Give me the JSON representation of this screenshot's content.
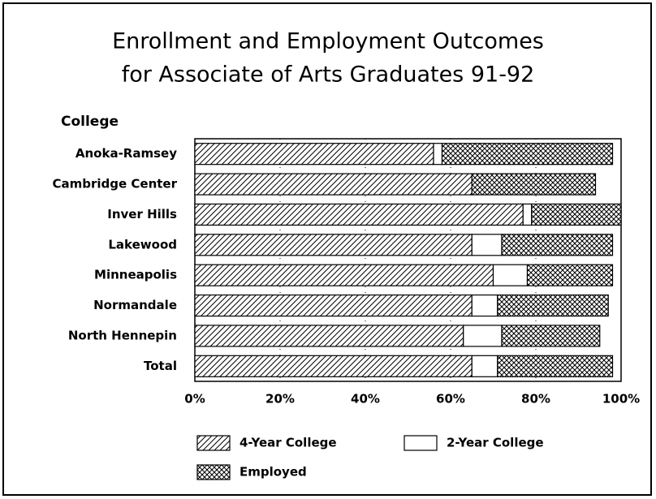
{
  "chart_data": {
    "type": "stacked_bar_horizontal",
    "title": [
      "Enrollment and Employment Outcomes",
      "for Associate of Arts Graduates 91-92"
    ],
    "y_axis_label": "College",
    "categories": [
      "Anoka-Ramsey",
      "Cambridge Center",
      "Inver Hills",
      "Lakewood",
      "Minneapolis",
      "Normandale",
      "North Hennepin",
      "Total"
    ],
    "series": [
      {
        "name": "4-Year College",
        "color": "#000000",
        "pattern": "hatch",
        "values": [
          56,
          65,
          77,
          65,
          70,
          65,
          63,
          65
        ]
      },
      {
        "name": "2-Year College",
        "color": "#000000",
        "pattern": "none",
        "values": [
          2,
          0,
          2,
          7,
          8,
          6,
          9,
          6
        ]
      },
      {
        "name": "Employed",
        "color": "#000000",
        "pattern": "crosshatch",
        "values": [
          40,
          29,
          21,
          26,
          20,
          26,
          23,
          27
        ]
      }
    ],
    "xlim": [
      0,
      100
    ],
    "xticks": [
      {
        "value": 0,
        "label": "0%"
      },
      {
        "value": 20,
        "label": "20%"
      },
      {
        "value": 40,
        "label": "40%"
      },
      {
        "value": 60,
        "label": "60%"
      },
      {
        "value": 80,
        "label": "80%"
      },
      {
        "value": 100,
        "label": "100%"
      }
    ],
    "grid": true
  }
}
